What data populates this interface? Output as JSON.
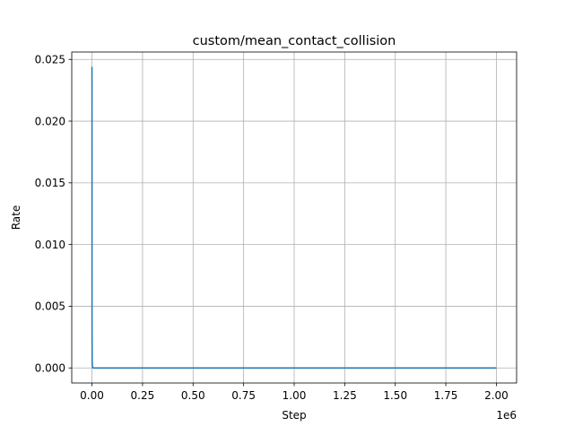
{
  "chart_data": {
    "type": "line",
    "title": "custom/mean_contact_collision",
    "xlabel": "Step",
    "ylabel": "Rate",
    "x_offset_label": "1e6",
    "xlim": [
      -0.1,
      2.1
    ],
    "ylim": [
      -0.00122,
      0.0256
    ],
    "grid": true,
    "legend": "none",
    "xticks": [
      0.0,
      0.25,
      0.5,
      0.75,
      1.0,
      1.25,
      1.5,
      1.75,
      2.0
    ],
    "xtick_labels": [
      "0.00",
      "0.25",
      "0.50",
      "0.75",
      "1.00",
      "1.25",
      "1.50",
      "1.75",
      "2.00"
    ],
    "yticks": [
      0.0,
      0.005,
      0.01,
      0.015,
      0.02,
      0.025
    ],
    "ytick_labels": [
      "0.000",
      "0.005",
      "0.010",
      "0.015",
      "0.020",
      "0.025"
    ],
    "series": [
      {
        "name": "custom/mean_contact_collision",
        "color": "#1f77b4",
        "x": [
          0.0,
          0.0001,
          0.0002,
          0.0003,
          0.001,
          0.002,
          0.005,
          0.01,
          0.25,
          0.5,
          0.75,
          1.0,
          1.25,
          1.5,
          1.75,
          2.0
        ],
        "y": [
          0.0244,
          0.0215,
          0.012,
          0.004,
          0.0006,
          0.0001,
          0.0,
          0.0,
          0.0,
          0.0,
          0.0,
          0.0,
          0.0,
          0.0,
          0.0,
          0.0
        ]
      }
    ]
  }
}
